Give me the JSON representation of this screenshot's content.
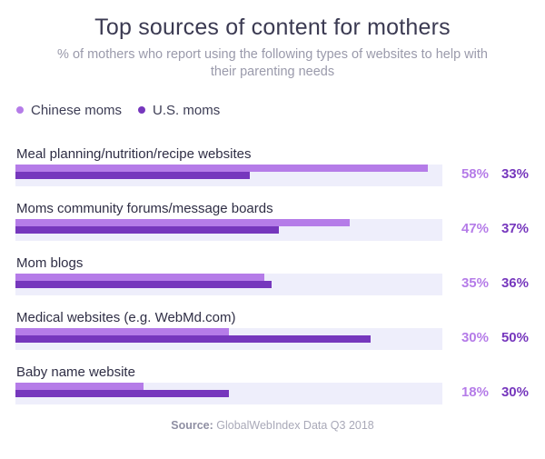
{
  "header": {
    "title": "Top sources of content for mothers",
    "subtitle": "% of mothers who report using the following types of websites to help with their parenting needs"
  },
  "footer": {
    "source_label": "Source:",
    "source_text": "GlobalWebIndex Data Q3 2018"
  },
  "colors": {
    "chinese": "#b57ce8",
    "us": "#7637bd",
    "track": "#eeeefb"
  },
  "chart_data": {
    "type": "bar",
    "orientation": "horizontal",
    "title": "Top sources of content for mothers",
    "subtitle": "% of mothers who report using the following types of websites to help with their parenting needs",
    "categories": [
      "Meal planning/nutrition/recipe websites",
      "Moms community forums/message boards",
      "Mom blogs",
      "Medical websites (e.g. WebMd.com)",
      "Baby name website"
    ],
    "series": [
      {
        "name": "Chinese moms",
        "values": [
          58,
          47,
          35,
          30,
          18
        ],
        "labels": [
          "58%",
          "47%",
          "35%",
          "30%",
          "18%"
        ]
      },
      {
        "name": "U.S. moms",
        "values": [
          33,
          37,
          36,
          50,
          30
        ],
        "labels": [
          "33%",
          "37%",
          "36%",
          "50%",
          "30%"
        ]
      }
    ],
    "xlim": [
      0,
      60
    ],
    "legend_position": "top-left",
    "grid": false
  }
}
